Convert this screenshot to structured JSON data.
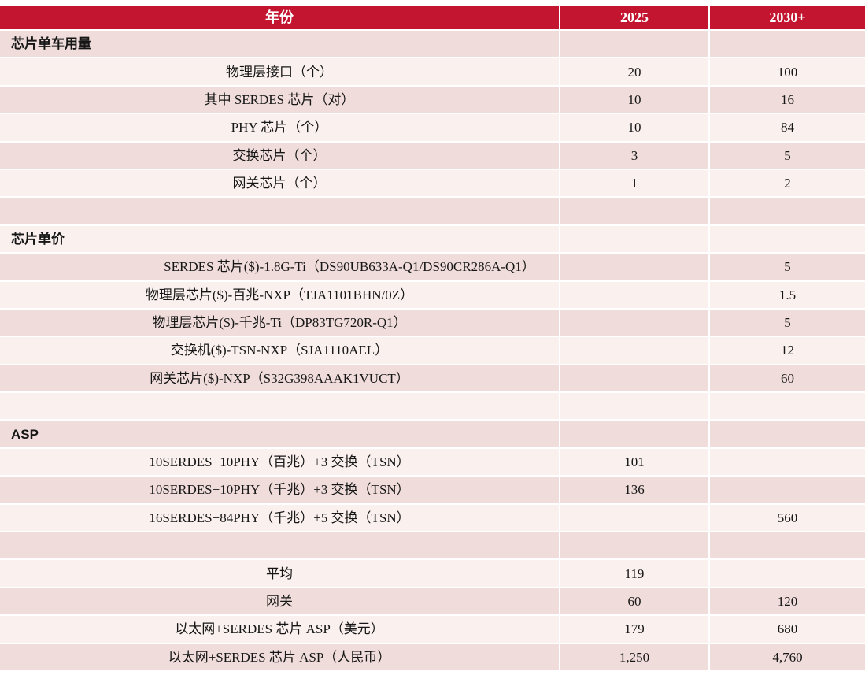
{
  "header": {
    "year_label": "年份",
    "col_2025": "2025",
    "col_2030": "2030+"
  },
  "colors": {
    "header_bg": "#C3152F",
    "header_text": "#FFFFFF",
    "row_dark": "#F0DDDB",
    "row_light": "#FAF1EF",
    "text": "#161616"
  },
  "chart_data": {
    "type": "table",
    "title": "年份 / 2025 / 2030+ 芯片用量与价格表",
    "columns": [
      "年份",
      "2025",
      "2030+"
    ],
    "rows": [
      {
        "type": "section",
        "label": "芯片单车用量",
        "v2025": "",
        "v2030": ""
      },
      {
        "type": "data",
        "label": "物理层接口（个）",
        "v2025": "20",
        "v2030": "100"
      },
      {
        "type": "data",
        "label": "其中 SERDES 芯片（对）",
        "v2025": "10",
        "v2030": "16"
      },
      {
        "type": "data",
        "label": "PHY 芯片（个）",
        "v2025": "10",
        "v2030": "84"
      },
      {
        "type": "data",
        "label": "交换芯片（个）",
        "v2025": "3",
        "v2030": "5"
      },
      {
        "type": "data",
        "label": "网关芯片（个）",
        "v2025": "1",
        "v2030": "2"
      },
      {
        "type": "empty",
        "label": "",
        "v2025": "",
        "v2030": ""
      },
      {
        "type": "section",
        "label": "芯片单价",
        "v2025": "",
        "v2030": ""
      },
      {
        "type": "data",
        "wide": true,
        "label": "SERDES 芯片($)-1.8G-Ti（DS90UB633A-Q1/DS90CR286A-Q1）",
        "v2025": "",
        "v2030": "5"
      },
      {
        "type": "data",
        "label": "物理层芯片($)-百兆-NXP（TJA1101BHN/0Z）",
        "v2025": "",
        "v2030": "1.5"
      },
      {
        "type": "data",
        "label": "物理层芯片($)-千兆-Ti（DP83TG720R-Q1）",
        "v2025": "",
        "v2030": "5"
      },
      {
        "type": "data",
        "label": "交换机($)-TSN-NXP（SJA1110AEL）",
        "v2025": "",
        "v2030": "12"
      },
      {
        "type": "data",
        "label": "网关芯片($)-NXP（S32G398AAAK1VUCT）",
        "v2025": "",
        "v2030": "60"
      },
      {
        "type": "empty",
        "label": "",
        "v2025": "",
        "v2030": ""
      },
      {
        "type": "section",
        "label": "ASP",
        "v2025": "",
        "v2030": ""
      },
      {
        "type": "data",
        "label": "10SERDES+10PHY（百兆）+3 交换（TSN）",
        "v2025": "101",
        "v2030": ""
      },
      {
        "type": "data",
        "label": "10SERDES+10PHY（千兆）+3 交换（TSN）",
        "v2025": "136",
        "v2030": ""
      },
      {
        "type": "data",
        "label": "16SERDES+84PHY（千兆）+5 交换（TSN）",
        "v2025": "",
        "v2030": "560"
      },
      {
        "type": "empty",
        "label": "",
        "v2025": "",
        "v2030": ""
      },
      {
        "type": "data",
        "label": "平均",
        "v2025": "119",
        "v2030": ""
      },
      {
        "type": "data",
        "label": "网关",
        "v2025": "60",
        "v2030": "120"
      },
      {
        "type": "data",
        "label": "以太网+SERDES 芯片 ASP（美元）",
        "v2025": "179",
        "v2030": "680"
      },
      {
        "type": "data",
        "label": "以太网+SERDES 芯片 ASP（人民币）",
        "v2025": "1,250",
        "v2030": "4,760"
      }
    ]
  }
}
